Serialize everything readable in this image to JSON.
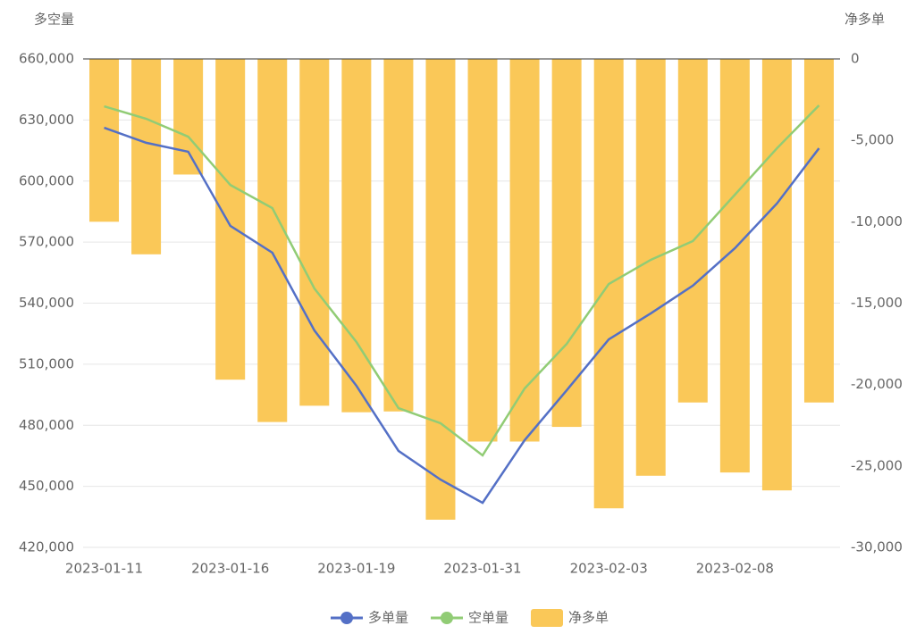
{
  "chart_data": {
    "type": "bar-line",
    "y_axis_label": "多空量",
    "y2_axis_label": "净多单",
    "categories": [
      "2023-01-11",
      null,
      null,
      "2023-01-16",
      null,
      null,
      "2023-01-19",
      null,
      null,
      "2023-01-31",
      null,
      null,
      "2023-02-03",
      null,
      null,
      "2023-02-08",
      null,
      null
    ],
    "series": [
      {
        "name": "多单量",
        "type": "line",
        "color": "#5470c6",
        "values": [
          626200,
          618800,
          614400,
          578000,
          564800,
          526600,
          499400,
          467400,
          453300,
          441900,
          472700,
          497200,
          522200,
          535000,
          548600,
          567000,
          589000,
          616100
        ]
      },
      {
        "name": "空单量",
        "type": "line",
        "color": "#91cc75",
        "values": [
          636700,
          630600,
          621800,
          598100,
          586700,
          547200,
          520900,
          488400,
          481000,
          465200,
          498100,
          520000,
          549400,
          561300,
          570500,
          593300,
          616100,
          637200
        ]
      },
      {
        "name": "净多单",
        "type": "bar",
        "axis": "y2",
        "color": "#fac858",
        "values": [
          -10000,
          -12000,
          -7100,
          -19700,
          -22300,
          -21300,
          -21700,
          -21650,
          -28300,
          -23500,
          -23500,
          -22600,
          -27600,
          -25600,
          -21100,
          -25400,
          -26500,
          -21100
        ]
      }
    ],
    "ylim": [
      420000,
      660000
    ],
    "yticks": [
      {
        "value": 420000,
        "label": "420,000"
      },
      {
        "value": 450000,
        "label": "450,000"
      },
      {
        "value": 480000,
        "label": "480,000"
      },
      {
        "value": 510000,
        "label": "510,000"
      },
      {
        "value": 540000,
        "label": "540,000"
      },
      {
        "value": 570000,
        "label": "570,000"
      },
      {
        "value": 600000,
        "label": "600,000"
      },
      {
        "value": 630000,
        "label": "630,000"
      },
      {
        "value": 660000,
        "label": "660,000"
      }
    ],
    "y2lim": [
      -30000,
      0
    ],
    "y2ticks": [
      {
        "value": -30000,
        "label": "-30,000"
      },
      {
        "value": -25000,
        "label": "-25,000"
      },
      {
        "value": -20000,
        "label": "-20,000"
      },
      {
        "value": -15000,
        "label": "-15,000"
      },
      {
        "value": -10000,
        "label": "-10,000"
      },
      {
        "value": -5000,
        "label": "-5,000"
      },
      0
    ],
    "grid": true,
    "legend": "bottom"
  }
}
